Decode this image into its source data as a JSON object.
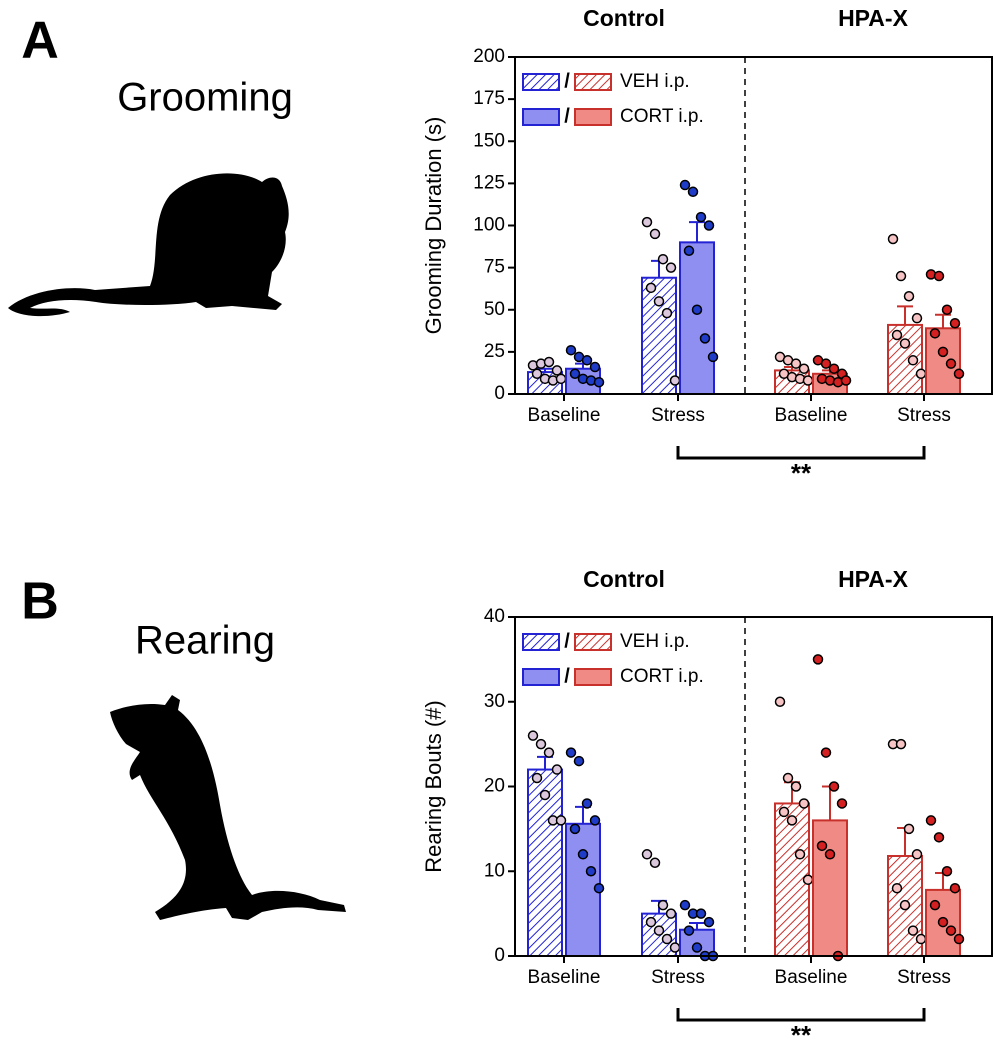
{
  "chart_data": [
    {
      "type": "bar",
      "panel": "A",
      "title": "Grooming",
      "ylabel": "Grooming Duration (s)",
      "ylim": [
        0,
        200
      ],
      "yticks": [
        0,
        25,
        50,
        75,
        100,
        125,
        150,
        175,
        200
      ],
      "categories": [
        "Baseline",
        "Stress",
        "Baseline",
        "Stress"
      ],
      "groups": [
        {
          "name": "Control",
          "color": "#2323d4",
          "fill": "#8f8ff2",
          "dot_light": "#dcc8dc",
          "dot_dark": "#1e3cc8"
        },
        {
          "name": "HPA-X",
          "color": "#c8302c",
          "fill": "#f08a84",
          "dot_light": "#f6c4c4",
          "dot_dark": "#d42020"
        }
      ],
      "legend_separator": "/",
      "series": [
        {
          "name": "VEH i.p.",
          "hatch": true,
          "values": [
            13,
            69,
            14,
            41
          ],
          "errors": [
            2,
            10,
            2,
            11
          ],
          "points": [
            [
              17,
              18,
              19,
              14,
              12,
              9,
              8,
              9
            ],
            [
              102,
              95,
              80,
              75,
              63,
              55,
              48,
              8
            ],
            [
              22,
              20,
              18,
              15,
              12,
              10,
              9,
              8
            ],
            [
              92,
              70,
              58,
              45,
              35,
              30,
              20,
              12
            ]
          ]
        },
        {
          "name": "CORT i.p.",
          "hatch": false,
          "values": [
            15,
            90,
            12,
            39
          ],
          "errors": [
            3,
            12,
            2,
            8
          ],
          "points": [
            [
              26,
              22,
              20,
              16,
              12,
              9,
              8,
              7
            ],
            [
              124,
              120,
              105,
              100,
              85,
              50,
              33,
              22
            ],
            [
              20,
              18,
              15,
              12,
              9,
              8,
              7,
              8
            ],
            [
              71,
              70,
              50,
              42,
              36,
              25,
              18,
              12
            ]
          ]
        }
      ],
      "annotation": "**"
    },
    {
      "type": "bar",
      "panel": "B",
      "title": "Rearing",
      "ylabel": "Rearing Bouts (#)",
      "ylim": [
        0,
        40
      ],
      "yticks": [
        0,
        10,
        20,
        30,
        40
      ],
      "categories": [
        "Baseline",
        "Stress",
        "Baseline",
        "Stress"
      ],
      "groups": [
        {
          "name": "Control",
          "color": "#2323d4",
          "fill": "#8f8ff2",
          "dot_light": "#dcc8dc",
          "dot_dark": "#1e3cc8"
        },
        {
          "name": "HPA-X",
          "color": "#c8302c",
          "fill": "#f08a84",
          "dot_light": "#f6c4c4",
          "dot_dark": "#d42020"
        }
      ],
      "legend_separator": "/",
      "series": [
        {
          "name": "VEH i.p.",
          "hatch": true,
          "values": [
            22,
            5,
            18,
            11.8
          ],
          "errors": [
            1.5,
            1.5,
            2.5,
            3.3
          ],
          "points": [
            [
              26,
              25,
              24,
              22,
              21,
              19,
              16,
              16
            ],
            [
              12,
              11,
              6,
              5,
              4,
              3,
              2,
              1
            ],
            [
              30,
              21,
              20,
              18,
              17,
              16,
              12,
              9
            ],
            [
              25,
              25,
              15,
              12,
              8,
              6,
              3,
              2
            ]
          ]
        },
        {
          "name": "CORT i.p.",
          "hatch": false,
          "values": [
            15.6,
            3.1,
            16,
            7.8
          ],
          "errors": [
            2,
            0.8,
            4,
            2
          ],
          "points": [
            [
              24,
              23,
              18,
              16,
              15,
              12,
              10,
              8
            ],
            [
              6,
              5,
              5,
              4,
              3,
              1,
              0,
              0
            ],
            [
              35,
              24,
              20,
              18,
              13,
              12,
              0
            ],
            [
              16,
              14,
              10,
              8,
              6,
              4,
              3,
              2
            ]
          ]
        }
      ],
      "annotation": "**"
    }
  ]
}
